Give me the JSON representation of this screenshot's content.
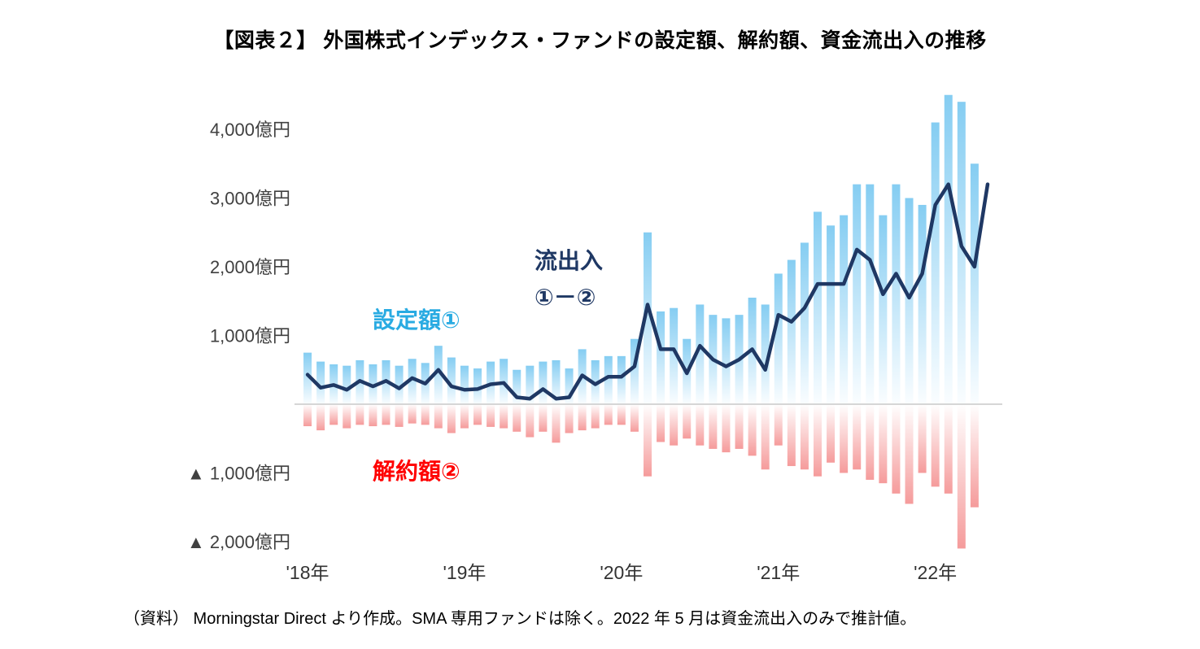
{
  "title": "【図表２】 外国株式インデックス・ファンドの設定額、解約額、資金流出入の推移",
  "source_note": "（資料） Morningstar Direct より作成。SMA 専用ファンドは除く。2022 年 5 月は資金流出入のみで推計値。",
  "labels": {
    "subscriptions": "設定額①",
    "net_flow_line1": "流出入",
    "net_flow_line2": "①－②",
    "redemptions": "解約額②"
  },
  "colors": {
    "bar_subscription_top": "#85CDF2",
    "bar_subscription_bottom": "#FAFDFF",
    "bar_redemption_top": "#FFFFFF",
    "bar_redemption_bottom": "#F59B9B",
    "net_flow_line": "#1F3864",
    "label_subscription": "#29ABE2",
    "label_redemption": "#FF0000",
    "label_net_flow": "#1F3864",
    "axis_line": "#D6D6D6",
    "tick_text": "#404040"
  },
  "chart_data": {
    "type": "bar-line-combo",
    "title": "外国株式インデックス・ファンドの設定額、解約額、資金流出入の推移",
    "xlabel": "",
    "ylabel": "億円",
    "ylim": [
      -2300,
      4700
    ],
    "grid": false,
    "legend_position": "in-plot-annotations",
    "x_unit": "month",
    "categories": [
      "2018-01",
      "2018-02",
      "2018-03",
      "2018-04",
      "2018-05",
      "2018-06",
      "2018-07",
      "2018-08",
      "2018-09",
      "2018-10",
      "2018-11",
      "2018-12",
      "2019-01",
      "2019-02",
      "2019-03",
      "2019-04",
      "2019-05",
      "2019-06",
      "2019-07",
      "2019-08",
      "2019-09",
      "2019-10",
      "2019-11",
      "2019-12",
      "2020-01",
      "2020-02",
      "2020-03",
      "2020-04",
      "2020-05",
      "2020-06",
      "2020-07",
      "2020-08",
      "2020-09",
      "2020-10",
      "2020-11",
      "2020-12",
      "2021-01",
      "2021-02",
      "2021-03",
      "2021-04",
      "2021-05",
      "2021-06",
      "2021-07",
      "2021-08",
      "2021-09",
      "2021-10",
      "2021-11",
      "2021-12",
      "2022-01",
      "2022-02",
      "2022-03",
      "2022-04",
      "2022-05"
    ],
    "series": [
      {
        "name": "設定額①",
        "type": "bar",
        "role": "subscriptions",
        "values": [
          750,
          620,
          580,
          560,
          640,
          580,
          640,
          560,
          660,
          600,
          850,
          680,
          560,
          520,
          620,
          660,
          500,
          560,
          620,
          640,
          520,
          800,
          640,
          700,
          700,
          950,
          2500,
          1350,
          1400,
          950,
          1450,
          1300,
          1250,
          1300,
          1550,
          1450,
          1900,
          2100,
          2350,
          2800,
          2600,
          2750,
          3200,
          3200,
          2750,
          3200,
          3000,
          2900,
          4100,
          4500,
          4400,
          3500,
          null
        ]
      },
      {
        "name": "解約額②",
        "type": "bar",
        "role": "redemptions",
        "values": [
          -320,
          -380,
          -300,
          -350,
          -300,
          -320,
          -300,
          -330,
          -280,
          -300,
          -350,
          -420,
          -350,
          -300,
          -330,
          -350,
          -400,
          -480,
          -400,
          -560,
          -420,
          -380,
          -350,
          -300,
          -300,
          -400,
          -1050,
          -550,
          -600,
          -500,
          -600,
          -650,
          -700,
          -650,
          -750,
          -950,
          -600,
          -900,
          -950,
          -1050,
          -850,
          -1000,
          -950,
          -1100,
          -1150,
          -1300,
          -1450,
          -1000,
          -1200,
          -1300,
          -2100,
          -1500,
          null
        ]
      },
      {
        "name": "流出入（①－②）",
        "type": "line",
        "role": "net_flow",
        "values": [
          430,
          240,
          280,
          210,
          340,
          260,
          340,
          230,
          380,
          300,
          500,
          260,
          210,
          220,
          290,
          310,
          100,
          80,
          220,
          80,
          100,
          420,
          290,
          400,
          400,
          550,
          1450,
          800,
          800,
          450,
          850,
          650,
          550,
          650,
          800,
          500,
          1300,
          1200,
          1400,
          1750,
          1750,
          1750,
          2250,
          2100,
          1600,
          1900,
          1550,
          1900,
          2900,
          3200,
          2300,
          2000,
          3200
        ]
      }
    ],
    "y_ticks": [
      {
        "value": 4000,
        "label": "4,000億円"
      },
      {
        "value": 3000,
        "label": "3,000億円"
      },
      {
        "value": 2000,
        "label": "2,000億円"
      },
      {
        "value": 1000,
        "label": "1,000億円"
      },
      {
        "value": -1000,
        "label": "▲ 1,000億円"
      },
      {
        "value": -2000,
        "label": "▲ 2,000億円"
      }
    ],
    "x_ticks": [
      {
        "index": 0,
        "label": "'18年"
      },
      {
        "index": 12,
        "label": "'19年"
      },
      {
        "index": 24,
        "label": "'20年"
      },
      {
        "index": 36,
        "label": "'21年"
      },
      {
        "index": 48,
        "label": "'22年"
      }
    ]
  }
}
